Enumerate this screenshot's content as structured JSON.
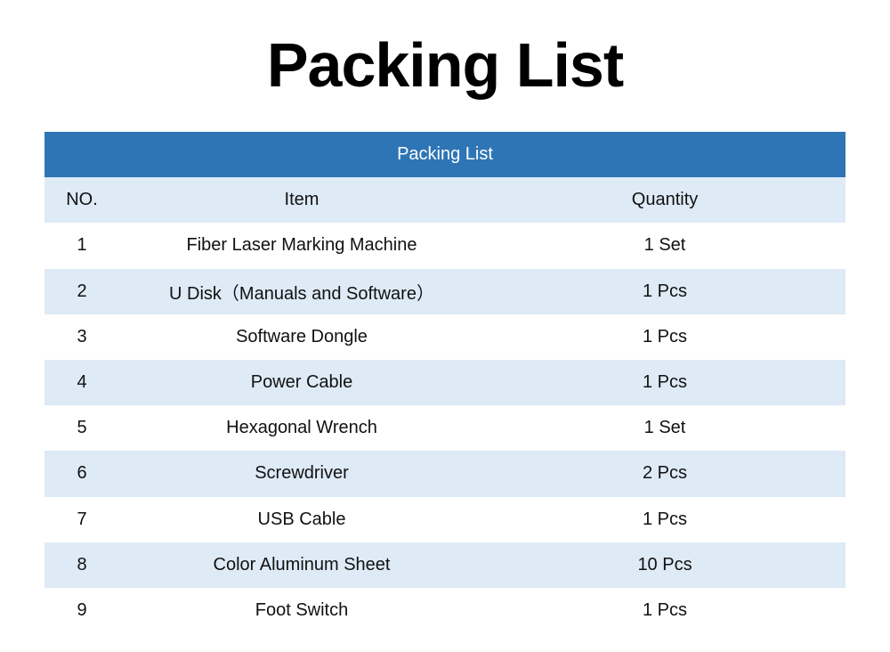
{
  "page": {
    "title": "Packing List"
  },
  "table": {
    "banner": "Packing List",
    "columns": {
      "no": "NO.",
      "item": "Item",
      "quantity": "Quantity"
    },
    "rows": [
      {
        "no": "1",
        "item": "Fiber Laser Marking Machine",
        "quantity": "1 Set"
      },
      {
        "no": "2",
        "item": "U Disk（Manuals and Software）",
        "quantity": "1 Pcs"
      },
      {
        "no": "3",
        "item": "Software Dongle",
        "quantity": "1 Pcs"
      },
      {
        "no": "4",
        "item": "Power Cable",
        "quantity": "1 Pcs"
      },
      {
        "no": "5",
        "item": "Hexagonal Wrench",
        "quantity": "1 Set"
      },
      {
        "no": "6",
        "item": "Screwdriver",
        "quantity": "2 Pcs"
      },
      {
        "no": "7",
        "item": "USB Cable",
        "quantity": "1 Pcs"
      },
      {
        "no": "8",
        "item": "Color Aluminum Sheet",
        "quantity": "10 Pcs"
      },
      {
        "no": "9",
        "item": "Foot Switch",
        "quantity": "1 Pcs"
      }
    ]
  },
  "colors": {
    "banner": "#2e75b6",
    "banner_text": "#ffffff",
    "shaded_row": "#deeaf6",
    "plain_row": "#ffffff",
    "text": "#111111"
  }
}
